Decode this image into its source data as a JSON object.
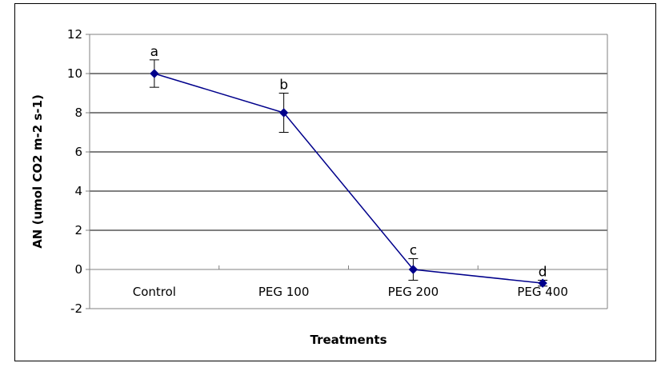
{
  "chart_data": {
    "type": "line",
    "categories": [
      "Control",
      "PEG 100",
      "PEG 200",
      "PEG 400"
    ],
    "series": [
      {
        "values": [
          10.0,
          8.0,
          0.0,
          -0.7
        ],
        "error": [
          0.7,
          1.0,
          0.55,
          0.15
        ],
        "point_labels": [
          "a",
          "b",
          "c",
          "d"
        ]
      }
    ],
    "xlabel": "Treatments",
    "ylabel": "AN (umol CO2 m-2 s-1)",
    "ylim": [
      -2,
      12
    ],
    "yticks": [
      -2,
      0,
      2,
      4,
      6,
      8,
      10,
      12
    ],
    "grid": "horizontal",
    "legend": "none",
    "colors": {
      "line": "#00008B",
      "marker": "#00008B",
      "grid": "#000000",
      "axis": "#808080"
    }
  }
}
